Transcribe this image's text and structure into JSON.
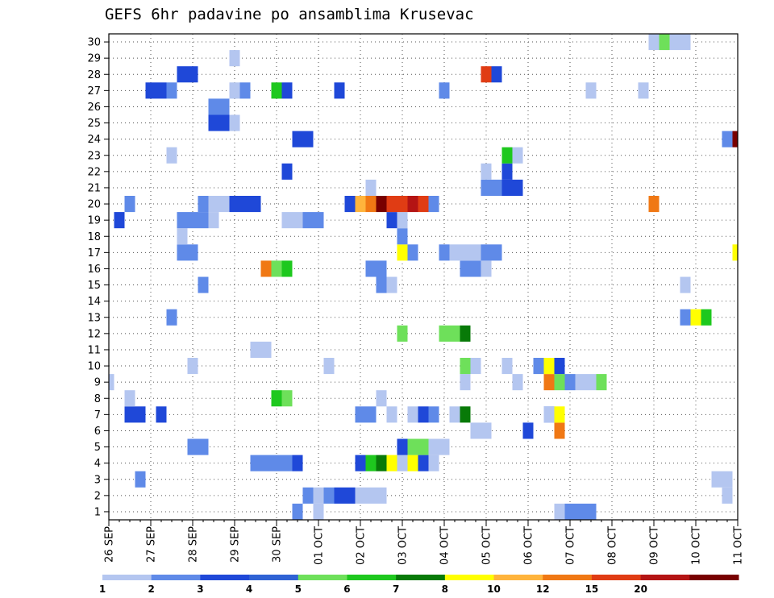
{
  "chart_data": {
    "type": "heatmap",
    "title": "GEFS 6hr padavine po ansamblima Krusevac",
    "xlabel": "",
    "ylabel": "",
    "x_steps_per_day": 4,
    "x_day_labels": [
      "26 SEP",
      "27 SEP",
      "28 SEP",
      "29 SEP",
      "30 SEP",
      "01 OCT",
      "02 OCT",
      "03 OCT",
      "04 OCT",
      "05 OCT",
      "06 OCT",
      "07 OCT",
      "08 OCT",
      "09 OCT",
      "10 OCT",
      "11 OCT"
    ],
    "y_labels": [
      "1",
      "2",
      "3",
      "4",
      "5",
      "6",
      "7",
      "8",
      "9",
      "10",
      "11",
      "12",
      "13",
      "14",
      "15",
      "16",
      "17",
      "18",
      "19",
      "20",
      "21",
      "22",
      "23",
      "24",
      "25",
      "26",
      "27",
      "28",
      "29",
      "30"
    ],
    "xlim": [
      0,
      60
    ],
    "ylim": [
      0.5,
      30.5
    ],
    "legend": {
      "thresholds": [
        "1",
        "2",
        "3",
        "4",
        "5",
        "6",
        "7",
        "8",
        "10",
        "12",
        "15",
        "20"
      ],
      "colors": [
        "#b4c6f0",
        "#5f8ae8",
        "#1f48d8",
        "#2f62d4",
        "#6ee05a",
        "#1ec81e",
        "#087a08",
        "#ffff00",
        "#ffb43c",
        "#f07814",
        "#e03c14",
        "#b41414",
        "#780000"
      ],
      "placement": "bottom"
    },
    "cells": [
      [
        1,
        18,
        1
      ],
      [
        2,
        19,
        1
      ],
      [
        2,
        20,
        0
      ],
      [
        2,
        21,
        1
      ],
      [
        2,
        22,
        2
      ],
      [
        2,
        23,
        2
      ],
      [
        2,
        24,
        0
      ],
      [
        2,
        25,
        0
      ],
      [
        2,
        26,
        0
      ],
      [
        3,
        3,
        1
      ],
      [
        4,
        14,
        1
      ],
      [
        4,
        15,
        1
      ],
      [
        4,
        16,
        1
      ],
      [
        4,
        17,
        1
      ],
      [
        4,
        18,
        2
      ],
      [
        5,
        8,
        1
      ],
      [
        5,
        9,
        1
      ],
      [
        6,
        35,
        0
      ],
      [
        6,
        36,
        0
      ],
      [
        7,
        2,
        2
      ],
      [
        7,
        3,
        2
      ],
      [
        7,
        5,
        2
      ],
      [
        7,
        42,
        1
      ],
      [
        8,
        2,
        0
      ],
      [
        8,
        26,
        0
      ],
      [
        9,
        0,
        0
      ],
      [
        9,
        34,
        0
      ],
      [
        10,
        8,
        0
      ],
      [
        11,
        14,
        0
      ],
      [
        11,
        15,
        0
      ],
      [
        13,
        6,
        1
      ],
      [
        15,
        9,
        1
      ],
      [
        16,
        34,
        1
      ],
      [
        16,
        35,
        1
      ],
      [
        16,
        36,
        0
      ],
      [
        17,
        7,
        1
      ],
      [
        17,
        8,
        1
      ],
      [
        17,
        32,
        1
      ],
      [
        17,
        33,
        0
      ],
      [
        17,
        34,
        0
      ],
      [
        17,
        35,
        0
      ],
      [
        17,
        36,
        1
      ],
      [
        17,
        37,
        1
      ],
      [
        18,
        7,
        0
      ],
      [
        19,
        1,
        2
      ],
      [
        19,
        7,
        1
      ],
      [
        19,
        8,
        1
      ],
      [
        19,
        9,
        1
      ],
      [
        19,
        10,
        0
      ],
      [
        19,
        17,
        0
      ],
      [
        19,
        18,
        0
      ],
      [
        19,
        19,
        1
      ],
      [
        19,
        20,
        1
      ],
      [
        20,
        2,
        1
      ],
      [
        20,
        9,
        1
      ],
      [
        20,
        10,
        0
      ],
      [
        20,
        11,
        0
      ],
      [
        20,
        12,
        2
      ],
      [
        20,
        13,
        2
      ],
      [
        20,
        14,
        2
      ],
      [
        21,
        36,
        1
      ],
      [
        21,
        37,
        1
      ],
      [
        21,
        38,
        2
      ],
      [
        21,
        39,
        2
      ],
      [
        22,
        17,
        2
      ],
      [
        22,
        38,
        2
      ],
      [
        23,
        6,
        0
      ],
      [
        24,
        18,
        2
      ],
      [
        24,
        19,
        2
      ],
      [
        25,
        10,
        2
      ],
      [
        25,
        11,
        2
      ],
      [
        26,
        10,
        1
      ],
      [
        26,
        11,
        1
      ],
      [
        27,
        4,
        2
      ],
      [
        27,
        5,
        2
      ],
      [
        27,
        6,
        1
      ],
      [
        28,
        7,
        2
      ],
      [
        28,
        8,
        2
      ]
    ],
    "__cell_format": "cells: [member (1-30), 6-hour step index from 26 SEP 00Z, colour-bin index 0-12]",
    "cells2": [
      [
        1,
        20,
        0
      ],
      [
        1,
        43,
        0
      ],
      [
        1,
        44,
        1
      ],
      [
        1,
        45,
        1
      ],
      [
        1,
        46,
        1
      ],
      [
        2,
        59,
        0
      ],
      [
        3,
        58,
        0
      ],
      [
        3,
        59,
        0
      ],
      [
        4,
        24,
        2
      ],
      [
        4,
        25,
        5
      ],
      [
        4,
        26,
        6
      ],
      [
        4,
        27,
        7
      ],
      [
        4,
        28,
        0
      ],
      [
        4,
        29,
        7
      ],
      [
        4,
        30,
        2
      ],
      [
        4,
        31,
        0
      ],
      [
        5,
        28,
        2
      ],
      [
        5,
        29,
        4
      ],
      [
        5,
        30,
        4
      ],
      [
        5,
        31,
        0
      ],
      [
        5,
        32,
        0
      ],
      [
        6,
        40,
        2
      ],
      [
        6,
        43,
        9
      ],
      [
        7,
        24,
        1
      ],
      [
        7,
        25,
        1
      ],
      [
        7,
        27,
        0
      ],
      [
        7,
        29,
        0
      ],
      [
        7,
        30,
        2
      ],
      [
        7,
        31,
        1
      ],
      [
        7,
        33,
        0
      ],
      [
        7,
        34,
        6
      ],
      [
        7,
        42,
        0
      ],
      [
        7,
        43,
        7
      ],
      [
        8,
        16,
        5
      ],
      [
        8,
        17,
        4
      ],
      [
        9,
        39,
        0
      ],
      [
        9,
        42,
        9
      ],
      [
        9,
        43,
        4
      ],
      [
        9,
        44,
        1
      ],
      [
        9,
        45,
        0
      ],
      [
        9,
        46,
        0
      ],
      [
        9,
        47,
        4
      ],
      [
        10,
        21,
        0
      ],
      [
        10,
        34,
        4
      ],
      [
        10,
        35,
        0
      ],
      [
        10,
        38,
        0
      ],
      [
        10,
        41,
        1
      ],
      [
        10,
        42,
        7
      ],
      [
        10,
        43,
        2
      ],
      [
        12,
        28,
        4
      ],
      [
        12,
        32,
        4
      ],
      [
        12,
        33,
        4
      ],
      [
        12,
        34,
        6
      ],
      [
        13,
        55,
        1
      ],
      [
        13,
        56,
        7
      ],
      [
        13,
        57,
        5
      ],
      [
        15,
        26,
        1
      ],
      [
        15,
        27,
        0
      ],
      [
        15,
        55,
        0
      ],
      [
        16,
        15,
        9
      ],
      [
        16,
        16,
        4
      ],
      [
        16,
        17,
        5
      ],
      [
        16,
        25,
        1
      ],
      [
        16,
        26,
        1
      ],
      [
        17,
        28,
        7
      ],
      [
        17,
        29,
        1
      ],
      [
        17,
        60,
        7
      ],
      [
        18,
        28,
        1
      ],
      [
        19,
        27,
        2
      ],
      [
        19,
        28,
        0
      ],
      [
        20,
        23,
        2
      ],
      [
        20,
        24,
        8
      ],
      [
        20,
        25,
        9
      ],
      [
        20,
        26,
        12
      ],
      [
        20,
        27,
        10
      ],
      [
        20,
        28,
        10
      ],
      [
        20,
        29,
        11
      ],
      [
        20,
        30,
        10
      ],
      [
        20,
        31,
        1
      ],
      [
        20,
        52,
        9
      ],
      [
        21,
        25,
        0
      ],
      [
        22,
        36,
        0
      ],
      [
        23,
        38,
        5
      ],
      [
        23,
        39,
        0
      ],
      [
        24,
        59,
        1
      ],
      [
        24,
        60,
        12
      ],
      [
        25,
        12,
        0
      ],
      [
        27,
        12,
        0
      ],
      [
        27,
        13,
        1
      ],
      [
        27,
        16,
        5
      ],
      [
        27,
        17,
        2
      ],
      [
        27,
        22,
        2
      ],
      [
        27,
        32,
        1
      ],
      [
        27,
        46,
        0
      ],
      [
        27,
        51,
        0
      ],
      [
        28,
        36,
        10
      ],
      [
        28,
        37,
        2
      ],
      [
        29,
        12,
        0
      ],
      [
        30,
        52,
        0
      ],
      [
        30,
        53,
        4
      ],
      [
        30,
        54,
        0
      ],
      [
        30,
        55,
        0
      ]
    ],
    "__notes": "cells2 continues the cell list"
  }
}
